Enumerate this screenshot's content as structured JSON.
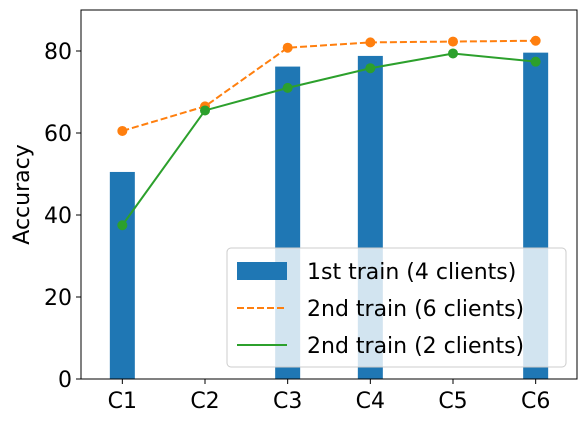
{
  "chart_data": {
    "type": "bar",
    "title": "",
    "xlabel": "",
    "ylabel": "Accuracy",
    "categories": [
      "C1",
      "C2",
      "C3",
      "C4",
      "C5",
      "C6"
    ],
    "ylim": [
      0,
      90
    ],
    "yticks": [
      0,
      20,
      40,
      60,
      80
    ],
    "grid": false,
    "legend_position": "lower-right",
    "series": [
      {
        "name": "1st train (4 clients)",
        "kind": "bar",
        "color": "#1f77b4",
        "values": [
          50.5,
          null,
          76.2,
          78.8,
          null,
          79.6
        ]
      },
      {
        "name": "2nd train (6 clients)",
        "kind": "line",
        "style": "dashed",
        "color": "#ff7f0e",
        "values": [
          60.5,
          66.5,
          80.8,
          82.1,
          82.3,
          82.5
        ]
      },
      {
        "name": "2nd train (2 clients)",
        "kind": "line",
        "style": "solid",
        "color": "#2ca02c",
        "values": [
          37.5,
          65.5,
          71.0,
          75.8,
          79.4,
          77.4
        ]
      }
    ]
  }
}
